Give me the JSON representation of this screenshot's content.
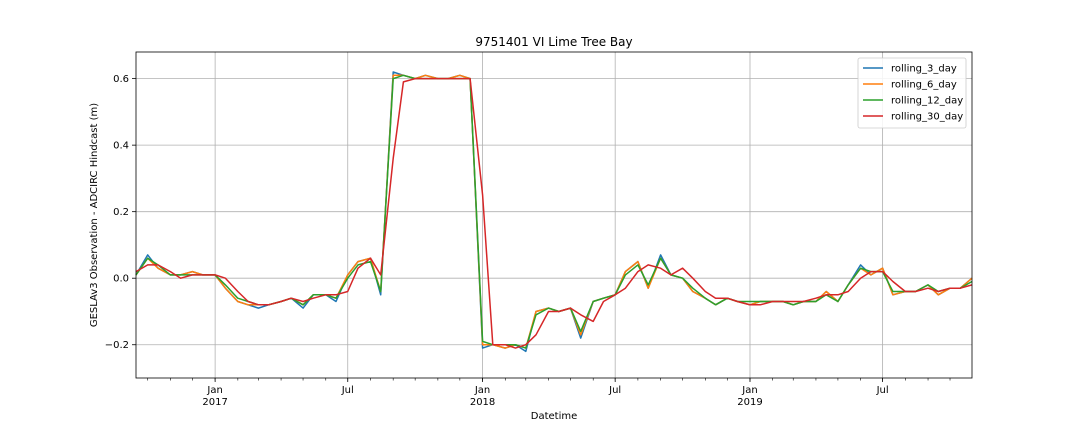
{
  "chart_data": {
    "type": "line",
    "title": "9751401 VI Lime Tree Bay",
    "xlabel": "Datetime",
    "ylabel": "GESLAv3 Observation - ADCIRC Hindcast (m)",
    "xlim": [
      "2016-09-15",
      "2019-10-31"
    ],
    "ylim": [
      -0.3,
      0.68
    ],
    "grid": true,
    "legend_position": "top-right",
    "y_ticks": [
      -0.2,
      0.0,
      0.2,
      0.4,
      0.6
    ],
    "y_tick_labels": [
      "−0.2",
      "0.0",
      "0.2",
      "0.4",
      "0.6"
    ],
    "x_ticks_major": [
      {
        "date": "2017-01-01",
        "label": "Jan",
        "year": "2017"
      },
      {
        "date": "2017-07-01",
        "label": "Jul",
        "year": ""
      },
      {
        "date": "2018-01-01",
        "label": "Jan",
        "year": "2018"
      },
      {
        "date": "2018-07-01",
        "label": "Jul",
        "year": ""
      },
      {
        "date": "2019-01-01",
        "label": "Jan",
        "year": "2019"
      },
      {
        "date": "2019-07-01",
        "label": "Jul",
        "year": ""
      }
    ],
    "x": [
      "2016-09-15",
      "2016-10-01",
      "2016-10-15",
      "2016-11-01",
      "2016-11-15",
      "2016-12-01",
      "2016-12-15",
      "2017-01-01",
      "2017-01-15",
      "2017-02-01",
      "2017-02-15",
      "2017-03-01",
      "2017-03-15",
      "2017-04-01",
      "2017-04-15",
      "2017-05-01",
      "2017-05-15",
      "2017-06-01",
      "2017-06-15",
      "2017-07-01",
      "2017-07-15",
      "2017-08-01",
      "2017-08-15",
      "2017-09-01",
      "2017-09-15",
      "2017-10-01",
      "2017-10-15",
      "2017-11-01",
      "2017-11-15",
      "2017-12-01",
      "2017-12-15",
      "2018-01-01",
      "2018-01-15",
      "2018-02-01",
      "2018-02-15",
      "2018-03-01",
      "2018-03-15",
      "2018-04-01",
      "2018-04-15",
      "2018-05-01",
      "2018-05-15",
      "2018-06-01",
      "2018-06-15",
      "2018-07-01",
      "2018-07-15",
      "2018-08-01",
      "2018-08-15",
      "2018-09-01",
      "2018-09-15",
      "2018-10-01",
      "2018-10-15",
      "2018-11-01",
      "2018-11-15",
      "2018-12-01",
      "2018-12-15",
      "2019-01-01",
      "2019-01-15",
      "2019-02-01",
      "2019-02-15",
      "2019-03-01",
      "2019-03-15",
      "2019-04-01",
      "2019-04-15",
      "2019-05-01",
      "2019-05-15",
      "2019-06-01",
      "2019-06-15",
      "2019-07-01",
      "2019-07-15",
      "2019-08-01",
      "2019-08-15",
      "2019-09-01",
      "2019-09-15",
      "2019-10-01",
      "2019-10-15",
      "2019-10-31"
    ],
    "series": [
      {
        "name": "rolling_3_day",
        "color": "#1f77b4",
        "values": [
          0.01,
          0.07,
          0.03,
          0.01,
          0.01,
          0.02,
          0.01,
          0.01,
          -0.03,
          -0.07,
          -0.08,
          -0.09,
          -0.08,
          -0.07,
          -0.06,
          -0.09,
          -0.05,
          -0.05,
          -0.07,
          0.01,
          0.05,
          0.06,
          -0.05,
          0.62,
          0.61,
          0.6,
          0.61,
          0.6,
          0.6,
          0.61,
          0.6,
          -0.21,
          -0.2,
          -0.21,
          -0.2,
          -0.22,
          -0.1,
          -0.09,
          -0.1,
          -0.09,
          -0.18,
          -0.07,
          -0.06,
          -0.05,
          0.02,
          0.05,
          -0.03,
          0.07,
          0.01,
          0.0,
          -0.04,
          -0.06,
          -0.08,
          -0.06,
          -0.07,
          -0.08,
          -0.07,
          -0.07,
          -0.07,
          -0.08,
          -0.07,
          -0.07,
          -0.04,
          -0.07,
          -0.02,
          0.04,
          0.01,
          0.03,
          -0.05,
          -0.04,
          -0.04,
          -0.02,
          -0.05,
          -0.03,
          -0.03,
          0.0
        ]
      },
      {
        "name": "rolling_6_day",
        "color": "#ff7f0e",
        "values": [
          0.01,
          0.06,
          0.03,
          0.01,
          0.01,
          0.02,
          0.01,
          0.01,
          -0.03,
          -0.07,
          -0.08,
          -0.08,
          -0.08,
          -0.07,
          -0.06,
          -0.08,
          -0.05,
          -0.05,
          -0.06,
          0.01,
          0.05,
          0.06,
          -0.04,
          0.61,
          0.61,
          0.6,
          0.61,
          0.6,
          0.6,
          0.61,
          0.6,
          -0.2,
          -0.2,
          -0.21,
          -0.2,
          -0.21,
          -0.1,
          -0.09,
          -0.1,
          -0.09,
          -0.17,
          -0.07,
          -0.06,
          -0.05,
          0.02,
          0.05,
          -0.03,
          0.06,
          0.01,
          0.0,
          -0.04,
          -0.06,
          -0.08,
          -0.06,
          -0.07,
          -0.08,
          -0.07,
          -0.07,
          -0.07,
          -0.08,
          -0.07,
          -0.07,
          -0.04,
          -0.07,
          -0.02,
          0.03,
          0.01,
          0.03,
          -0.05,
          -0.04,
          -0.04,
          -0.02,
          -0.05,
          -0.03,
          -0.03,
          0.0
        ]
      },
      {
        "name": "rolling_12_day",
        "color": "#2ca02c",
        "values": [
          0.01,
          0.06,
          0.04,
          0.01,
          0.01,
          0.01,
          0.01,
          0.01,
          -0.02,
          -0.06,
          -0.07,
          -0.08,
          -0.08,
          -0.07,
          -0.06,
          -0.08,
          -0.05,
          -0.05,
          -0.06,
          0.0,
          0.04,
          0.05,
          -0.04,
          0.6,
          0.61,
          0.6,
          0.6,
          0.6,
          0.6,
          0.6,
          0.6,
          -0.19,
          -0.2,
          -0.2,
          -0.2,
          -0.21,
          -0.11,
          -0.09,
          -0.1,
          -0.09,
          -0.16,
          -0.07,
          -0.06,
          -0.05,
          0.01,
          0.04,
          -0.02,
          0.06,
          0.01,
          0.0,
          -0.03,
          -0.06,
          -0.08,
          -0.06,
          -0.07,
          -0.07,
          -0.07,
          -0.07,
          -0.07,
          -0.08,
          -0.07,
          -0.07,
          -0.05,
          -0.07,
          -0.02,
          0.03,
          0.02,
          0.02,
          -0.04,
          -0.04,
          -0.04,
          -0.02,
          -0.04,
          -0.03,
          -0.03,
          -0.01
        ]
      },
      {
        "name": "rolling_30_day",
        "color": "#d62728",
        "values": [
          0.02,
          0.04,
          0.04,
          0.02,
          0.0,
          0.01,
          0.01,
          0.01,
          0.0,
          -0.04,
          -0.07,
          -0.08,
          -0.08,
          -0.07,
          -0.06,
          -0.07,
          -0.06,
          -0.05,
          -0.05,
          -0.04,
          0.03,
          0.06,
          0.01,
          0.36,
          0.59,
          0.6,
          0.6,
          0.6,
          0.6,
          0.6,
          0.6,
          0.25,
          -0.2,
          -0.2,
          -0.21,
          -0.2,
          -0.17,
          -0.1,
          -0.1,
          -0.09,
          -0.11,
          -0.13,
          -0.07,
          -0.05,
          -0.03,
          0.02,
          0.04,
          0.03,
          0.01,
          0.03,
          0.0,
          -0.04,
          -0.06,
          -0.06,
          -0.07,
          -0.08,
          -0.08,
          -0.07,
          -0.07,
          -0.07,
          -0.07,
          -0.06,
          -0.05,
          -0.05,
          -0.04,
          0.0,
          0.02,
          0.02,
          -0.01,
          -0.04,
          -0.04,
          -0.03,
          -0.04,
          -0.03,
          -0.03,
          -0.02
        ]
      }
    ]
  }
}
